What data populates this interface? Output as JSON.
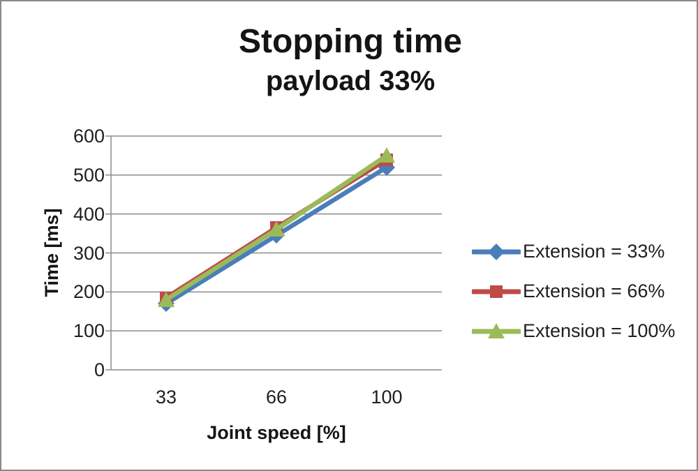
{
  "chart_data": {
    "type": "line",
    "title": "Stopping time",
    "subtitle": "payload 33%",
    "xlabel": "Joint speed [%]",
    "ylabel": "Time [ms]",
    "categories": [
      "33",
      "66",
      "100"
    ],
    "series": [
      {
        "name": "Extension = 33%",
        "marker": "diamond",
        "color": "#4A7EBB",
        "values": [
          170,
          345,
          520
        ]
      },
      {
        "name": "Extension = 66%",
        "marker": "square",
        "color": "#BE4B48",
        "values": [
          185,
          365,
          540
        ]
      },
      {
        "name": "Extension = 100%",
        "marker": "triangle",
        "color": "#9BBB59",
        "values": [
          180,
          360,
          550
        ]
      }
    ],
    "ylim": [
      0,
      600
    ],
    "yticks": [
      0,
      100,
      200,
      300,
      400,
      500,
      600
    ],
    "grid": true,
    "legend_position": "right",
    "gridline_color": "#8c8c8c",
    "axis_color": "#8c8c8c",
    "text_color": "#1f1f1f",
    "background_color": "#ffffff"
  }
}
